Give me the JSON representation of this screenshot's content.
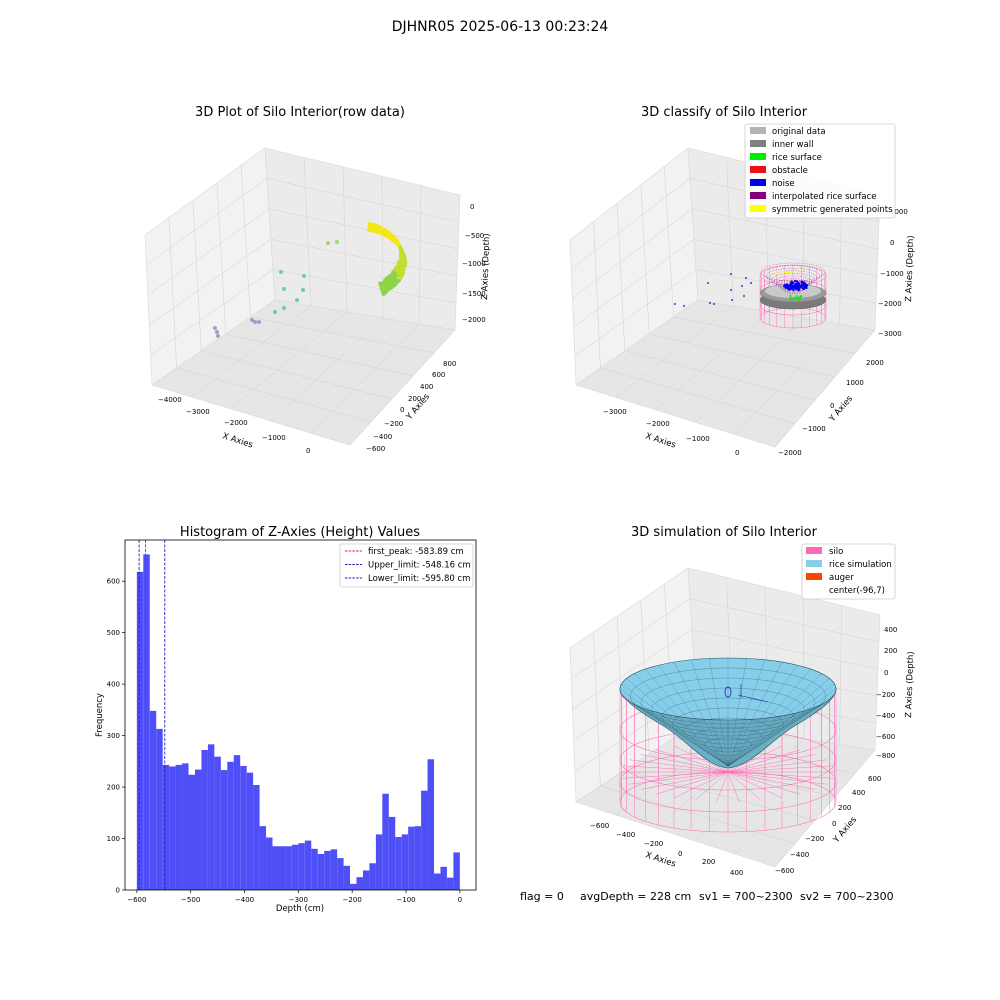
{
  "suptitle": "DJHNR05 2025-06-13 00:23:24",
  "footer": {
    "flag": "flag = 0",
    "avg": "avgDepth = 228 cm",
    "sv1": "sv1 = 700~2300",
    "sv2": "sv2 = 700~2300"
  },
  "chart_data": [
    {
      "type": "scatter3d",
      "title": "3D Plot of Silo Interior(row data)",
      "xlabel": "X Axies",
      "ylabel": "Y Axies",
      "zlabel": "Z Axies (Depth)",
      "x_ticks": [
        "−4000",
        "−3000",
        "−2000",
        "−1000",
        "0"
      ],
      "y_ticks": [
        "−600",
        "−400",
        "−200",
        "0",
        "200",
        "400",
        "600",
        "800"
      ],
      "z_ticks": [
        "−2000",
        "−1500",
        "−1000",
        "−500",
        "0"
      ],
      "colors": {
        "high": "#f2e619",
        "mid": "#8ed34a",
        "low": "#4ec4a0",
        "far": "#9a86b8"
      }
    },
    {
      "type": "scatter3d",
      "title": "3D classify of Silo Interior",
      "xlabel": "X Axies",
      "ylabel": "Y Axies",
      "zlabel": "Z Axies (Depth)",
      "x_ticks": [
        "−3000",
        "−2000",
        "−1000",
        "0"
      ],
      "y_ticks": [
        "−2000",
        "−1000",
        "0",
        "1000",
        "2000"
      ],
      "z_ticks": [
        "−3000",
        "−2000",
        "−1000",
        "0",
        "1000"
      ],
      "legend": [
        {
          "label": "original data",
          "color": "#b3b3b3"
        },
        {
          "label": "inner wall",
          "color": "#808080"
        },
        {
          "label": "rice surface",
          "color": "#00ee00"
        },
        {
          "label": "obstacle",
          "color": "#ee1111"
        },
        {
          "label": "noise",
          "color": "#0000ee"
        },
        {
          "label": "interpolated rice surface",
          "color": "#800080"
        },
        {
          "label": "symmetric generated points",
          "color": "#ffff00"
        }
      ]
    },
    {
      "type": "bar",
      "title": "Histogram of Z-Axies (Height) Values",
      "xlabel": "Depth (cm)",
      "ylabel": "Frequency",
      "xlim": [
        -622,
        30
      ],
      "ylim": [
        0,
        680
      ],
      "x_ticks": [
        -600,
        -500,
        -400,
        -300,
        -200,
        -100,
        0
      ],
      "y_ticks": [
        0,
        100,
        200,
        300,
        400,
        500,
        600
      ],
      "bin_start": -600,
      "bin_width": 12,
      "values": [
        618,
        652,
        348,
        313,
        243,
        240,
        243,
        246,
        224,
        234,
        272,
        283,
        259,
        233,
        249,
        262,
        241,
        228,
        204,
        124,
        102,
        85,
        85,
        85,
        88,
        91,
        96,
        80,
        70,
        76,
        79,
        62,
        47,
        12,
        25,
        38,
        52,
        108,
        187,
        142,
        103,
        108,
        123,
        124,
        193,
        254,
        32,
        45,
        24,
        73
      ],
      "bar_color": "#4f4ff8",
      "lines": [
        {
          "label": "first_peak: -583.89 cm",
          "x": -583.89,
          "color": "#e02020"
        },
        {
          "label": "Upper_limit: -548.16 cm",
          "x": -548.16,
          "color": "#2020c0"
        },
        {
          "label": "Lower_limit: -595.80 cm",
          "x": -595.8,
          "color": "#2020c0"
        }
      ]
    },
    {
      "type": "surface3d",
      "title": "3D simulation of Silo Interior",
      "xlabel": "X Axies",
      "ylabel": "Y Axies",
      "zlabel": "Z Axies (Depth)",
      "x_ticks": [
        "−600",
        "−400",
        "−200",
        "0",
        "200",
        "400"
      ],
      "y_ticks": [
        "−600",
        "−400",
        "−200",
        "0",
        "200",
        "400",
        "600"
      ],
      "z_ticks": [
        "−800",
        "−600",
        "−400",
        "−200",
        "0",
        "200",
        "400"
      ],
      "legend": [
        {
          "label": "silo",
          "color": "#ff69b4"
        },
        {
          "label": "rice simulation",
          "color": "#87ceeb"
        },
        {
          "label": "auger",
          "color": "#ff4500"
        },
        {
          "label": "center(-96,7)",
          "color": ""
        }
      ]
    }
  ]
}
